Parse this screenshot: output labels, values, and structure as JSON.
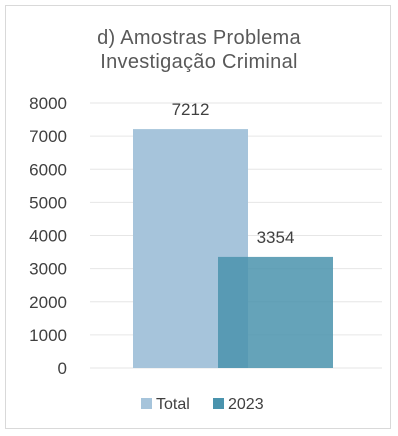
{
  "chart_data": {
    "type": "bar",
    "title_lines": [
      "d) Amostras Problema",
      "Investigação Criminal"
    ],
    "ylim": [
      0,
      8000
    ],
    "yticks": [
      "0",
      "1000",
      "2000",
      "3000",
      "4000",
      "5000",
      "6000",
      "7000",
      "8000"
    ],
    "grid": true,
    "legend_position": "bottom",
    "series": [
      {
        "name": "Total",
        "values": [
          7212
        ],
        "color": "#a6c4db",
        "label": "7212"
      },
      {
        "name": "2023",
        "values": [
          3354
        ],
        "color": "#4a93ad",
        "label": "3354"
      }
    ]
  }
}
